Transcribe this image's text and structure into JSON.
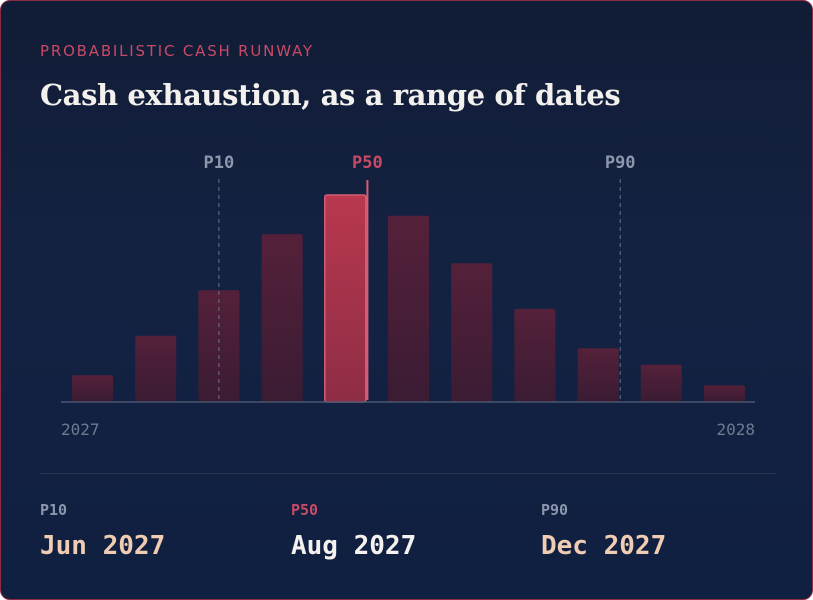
{
  "card": {
    "eyebrow": "PROBABILISTIC CASH RUNWAY",
    "title": "Cash exhaustion, as a range of dates"
  },
  "colors": {
    "accent": "#c84a67",
    "bar_fill": "#4a2238",
    "bar_highlight": "#b83a52",
    "marker_muted": "#8c97ad",
    "value_warm": "#f0cdb2",
    "value_light": "#f4f1ee"
  },
  "chart_data": {
    "type": "bar",
    "title": "Cash exhaustion, as a range of dates",
    "x_start_label": "2027",
    "x_end_label": "2028",
    "values": [
      0.13,
      0.32,
      0.54,
      0.81,
      1.0,
      0.9,
      0.67,
      0.45,
      0.26,
      0.18,
      0.08
    ],
    "highlight_index": 4,
    "ylim": [
      0,
      1
    ],
    "grid": false,
    "legend": "none",
    "markers": [
      {
        "label": "P10",
        "bar_index": 2.0,
        "emphasis": false
      },
      {
        "label": "P50",
        "bar_index": 4.35,
        "emphasis": true
      },
      {
        "label": "P90",
        "bar_index": 8.35,
        "emphasis": false
      }
    ]
  },
  "summary": [
    {
      "label": "P10",
      "value": "Jun 2027"
    },
    {
      "label": "P50",
      "value": "Aug 2027"
    },
    {
      "label": "P90",
      "value": "Dec 2027"
    }
  ]
}
